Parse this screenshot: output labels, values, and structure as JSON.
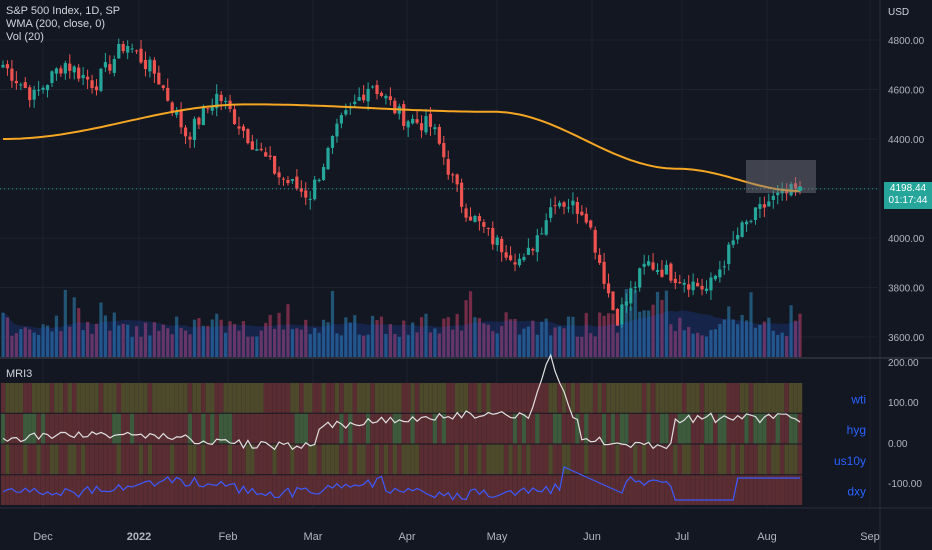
{
  "header": {
    "symbol_line": "S&P 500 Index, 1D, SP",
    "wma_line": "WMA (200, close, 0)",
    "vol_line": "Vol (20)",
    "currency": "USD"
  },
  "price_tag": {
    "price": "4198.44",
    "countdown": "01:17:44",
    "color": "#26a69a"
  },
  "indicator": {
    "title": "MRI3",
    "rows": [
      "wti",
      "hyg",
      "us10y",
      "dxy"
    ],
    "row_colors": [
      "#2962ff",
      "#2962ff",
      "#2962ff",
      "#2962ff"
    ]
  },
  "colors": {
    "up": "#26a69a",
    "down": "#ef5350",
    "wma": "#f5a623",
    "white_line": "#e0e0e0",
    "blue_line": "#3d5afe"
  },
  "chart_data": {
    "type": "candlestick",
    "title": "S&P 500 Index, 1D, SP",
    "ylabel": "USD",
    "y_ticks": [
      4800,
      4600,
      4400,
      4200,
      4000,
      3800,
      3600
    ],
    "y_tick_labels": [
      "4800.00",
      "4600.00",
      "4400.00",
      "4200.00",
      "4000.00",
      "3800.00",
      "3600.00"
    ],
    "x_tick_labels": [
      "Dec",
      "2022",
      "Feb",
      "Mar",
      "Apr",
      "May",
      "Jun",
      "Jul",
      "Aug",
      "Sep"
    ],
    "ohlc_anchors": {
      "x": [
        "Nov 22",
        "Nov 30",
        "Dec 10",
        "Dec 20",
        "Jan 3",
        "Jan 14",
        "Jan 24",
        "Feb 2",
        "Feb 14",
        "Feb 24",
        "Mar 8",
        "Mar 18",
        "Mar 29",
        "Apr 8",
        "Apr 20",
        "Apr 29",
        "May 9",
        "May 20",
        "May 30",
        "Jun 8",
        "Jun 16",
        "Jun 27",
        "Jul 6",
        "Jul 14",
        "Jul 26",
        "Aug 5",
        "Aug 12"
      ],
      "close": [
        4700,
        4570,
        4710,
        4620,
        4790,
        4660,
        4410,
        4580,
        4410,
        4250,
        4170,
        4460,
        4630,
        4490,
        4450,
        4130,
        3990,
        3900,
        4160,
        4110,
        3670,
        3900,
        3845,
        3790,
        4020,
        4150,
        4198
      ]
    },
    "wma_anchors": {
      "x_index": [
        0,
        8,
        16,
        22,
        26
      ],
      "values": [
        4400,
        4540,
        4510,
        4280,
        4190
      ]
    },
    "last_close": 4198.44,
    "indicator_panel": {
      "title": "MRI3",
      "y_tick_labels": [
        "200.00",
        "100.00",
        "0.00",
        "-100.00"
      ],
      "series": [
        "wti",
        "hyg",
        "us10y",
        "dxy"
      ]
    }
  }
}
